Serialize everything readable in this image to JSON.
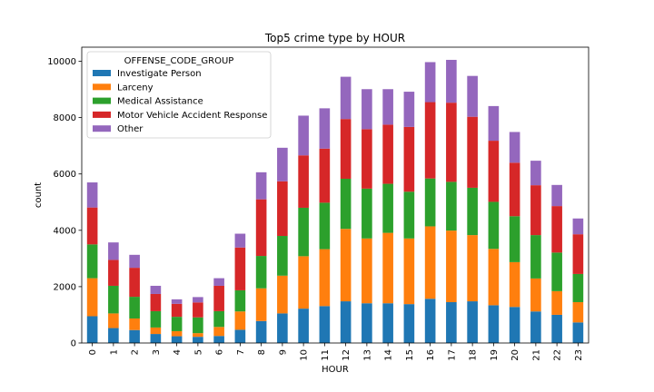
{
  "chart_data": {
    "type": "bar",
    "stacked": true,
    "title": "Top5 crime type by HOUR",
    "xlabel": "HOUR",
    "ylabel": "count",
    "ylim": [
      0,
      10500
    ],
    "yticks": [
      0,
      2000,
      4000,
      6000,
      8000,
      10000
    ],
    "categories": [
      "0",
      "1",
      "2",
      "3",
      "4",
      "5",
      "6",
      "7",
      "8",
      "9",
      "10",
      "11",
      "12",
      "13",
      "14",
      "15",
      "16",
      "17",
      "18",
      "19",
      "20",
      "21",
      "22",
      "23"
    ],
    "legend": {
      "title": "OFFENSE_CODE_GROUP",
      "placement": "upper-left"
    },
    "grid": false,
    "series": [
      {
        "name": "Investigate Person",
        "color": "#1f77b4",
        "values": [
          950,
          530,
          460,
          320,
          240,
          220,
          250,
          470,
          780,
          1050,
          1220,
          1310,
          1480,
          1410,
          1410,
          1380,
          1570,
          1450,
          1480,
          1340,
          1280,
          1120,
          1000,
          730
        ]
      },
      {
        "name": "Larceny",
        "color": "#ff7f0e",
        "values": [
          1350,
          520,
          410,
          230,
          180,
          130,
          320,
          650,
          1160,
          1340,
          1860,
          2020,
          2570,
          2300,
          2500,
          2330,
          2570,
          2540,
          2350,
          2000,
          1590,
          1170,
          840,
          720
        ]
      },
      {
        "name": "Medical Assistance",
        "color": "#2ca02c",
        "values": [
          1200,
          980,
          770,
          580,
          510,
          560,
          560,
          750,
          1150,
          1410,
          1720,
          1650,
          1780,
          1770,
          1740,
          1660,
          1700,
          1730,
          1680,
          1670,
          1630,
          1540,
          1370,
          1000
        ]
      },
      {
        "name": "Motor Vehicle Accident Response",
        "color": "#d62728",
        "values": [
          1310,
          920,
          1030,
          610,
          460,
          530,
          900,
          1520,
          2010,
          1940,
          1860,
          1920,
          2120,
          2110,
          2100,
          2300,
          2710,
          2810,
          2520,
          2170,
          1900,
          1770,
          1650,
          1410
        ]
      },
      {
        "name": "Other",
        "color": "#9467bd",
        "values": [
          890,
          620,
          460,
          290,
          160,
          190,
          270,
          490,
          960,
          1190,
          1410,
          1430,
          1500,
          1420,
          1260,
          1250,
          1420,
          1520,
          1450,
          1230,
          1090,
          870,
          750,
          560
        ]
      }
    ]
  }
}
